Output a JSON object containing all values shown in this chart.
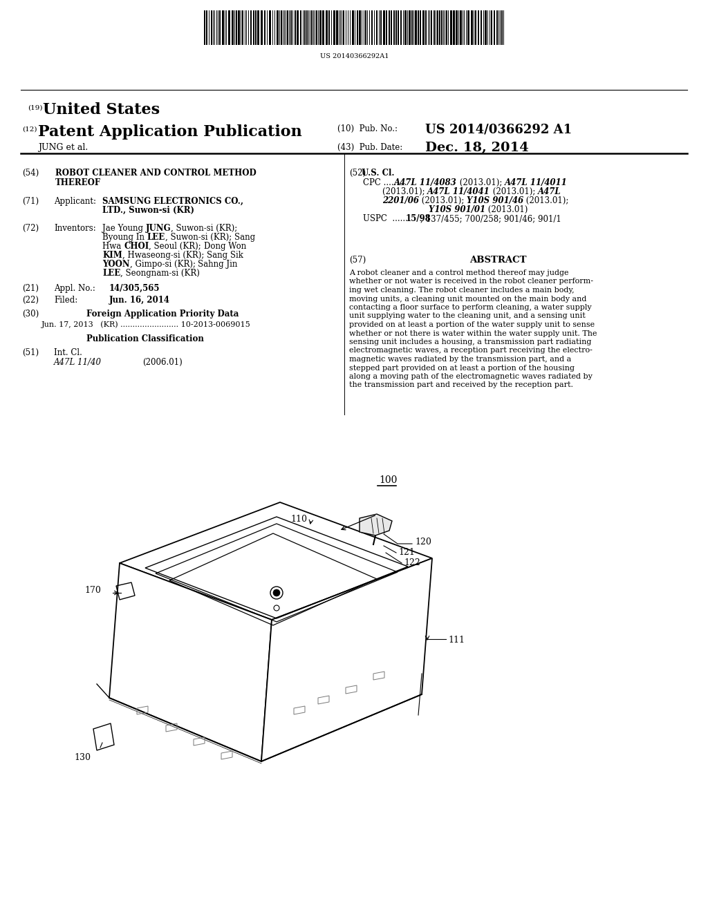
{
  "background_color": "#ffffff",
  "barcode_text": "US 20140366292A1",
  "header_line1_num": "(19)",
  "header_line1_text": "United States",
  "header_line2_num": "(12)",
  "header_line2_text": "Patent Application Publication",
  "pub_no_label": "(10)  Pub. No.:",
  "pub_no_value": "US 2014/0366292 A1",
  "pub_date_label": "(43)  Pub. Date:",
  "pub_date_value": "Dec. 18, 2014",
  "inventor_line": "JUNG et al.",
  "f54_num": "(54)",
  "f54_line1": "ROBOT CLEANER AND CONTROL METHOD",
  "f54_line2": "THEREOF",
  "f71_num": "(71)",
  "f71_label": "Applicant:",
  "f71_line1": "SAMSUNG ELECTRONICS CO.,",
  "f71_line2": "LTD., Suwon-si (KR)",
  "f72_num": "(72)",
  "f72_label": "Inventors:",
  "f72_lines": [
    [
      "Jae Young ",
      "JUNG",
      ", Suwon-si (KR);"
    ],
    [
      "Byoung In ",
      "LEE",
      ", Suwon-si (KR); Sang"
    ],
    [
      "Hwa ",
      "CHOI",
      ", Seoul (KR); Dong Won"
    ],
    [
      "KIM",
      ", Hwaseong-si (KR); Sang Sik"
    ],
    [
      "YOON",
      ", Gimpo-si (KR); Sahng Jin"
    ],
    [
      "LEE",
      ", Seongnam-si (KR)"
    ]
  ],
  "f21_num": "(21)",
  "f21_label": "Appl. No.:",
  "f21_value": "14/305,565",
  "f22_num": "(22)",
  "f22_label": "Filed:",
  "f22_value": "Jun. 16, 2014",
  "f30_num": "(30)",
  "f30_label": "Foreign Application Priority Data",
  "f30_entry": "Jun. 17, 2013   (KR) ........................ 10-2013-0069015",
  "pub_class": "Publication Classification",
  "f51_num": "(51)",
  "f51_label": "Int. Cl.",
  "f51_class": "A47L 11/40",
  "f51_year": "(2006.01)",
  "f52_num": "(52)",
  "f52_label": "U.S. Cl.",
  "f52_cpc_prefix": "CPC .........",
  "f52_cpc_lines": [
    [
      [
        "A47L 11/4083",
        true
      ],
      [
        " (2013.01); ",
        false
      ],
      [
        "A47L 11/4011",
        true
      ]
    ],
    [
      [
        "(2013.01); ",
        false
      ],
      [
        "A47L 11/4041",
        true
      ],
      [
        " (2013.01); ",
        false
      ],
      [
        "A47L",
        true
      ]
    ],
    [
      [
        "2201/06",
        true
      ],
      [
        " (2013.01); ",
        false
      ],
      [
        "Y10S 901/46",
        true
      ],
      [
        " (2013.01);",
        false
      ]
    ],
    [
      [
        "Y10S 901/01",
        true
      ],
      [
        " (2013.01)",
        false
      ]
    ]
  ],
  "f52_uspc": "USPC  ....... ",
  "f52_uspc_bold": "15/98",
  "f52_uspc_rest": "; 137/455; 700/258; 901/46; 901/1",
  "f57_num": "(57)",
  "f57_label": "ABSTRACT",
  "abstract_lines": [
    "A robot cleaner and a control method thereof may judge",
    "whether or not water is received in the robot cleaner perform-",
    "ing wet cleaning. The robot cleaner includes a main body,",
    "moving units, a cleaning unit mounted on the main body and",
    "contacting a floor surface to perform cleaning, a water supply",
    "unit supplying water to the cleaning unit, and a sensing unit",
    "provided on at least a portion of the water supply unit to sense",
    "whether or not there is water within the water supply unit. The",
    "sensing unit includes a housing, a transmission part radiating",
    "electromagnetic waves, a reception part receiving the electro-",
    "magnetic waves radiated by the transmission part, and a",
    "stepped part provided on at least a portion of the housing",
    "along a moving path of the electromagnetic waves radiated by",
    "the transmission part and received by the reception part."
  ],
  "ref_100": "100",
  "ref_110": "110",
  "ref_111": "111",
  "ref_120": "120",
  "ref_121": "121",
  "ref_122": "122",
  "ref_130": "130",
  "ref_170": "170"
}
